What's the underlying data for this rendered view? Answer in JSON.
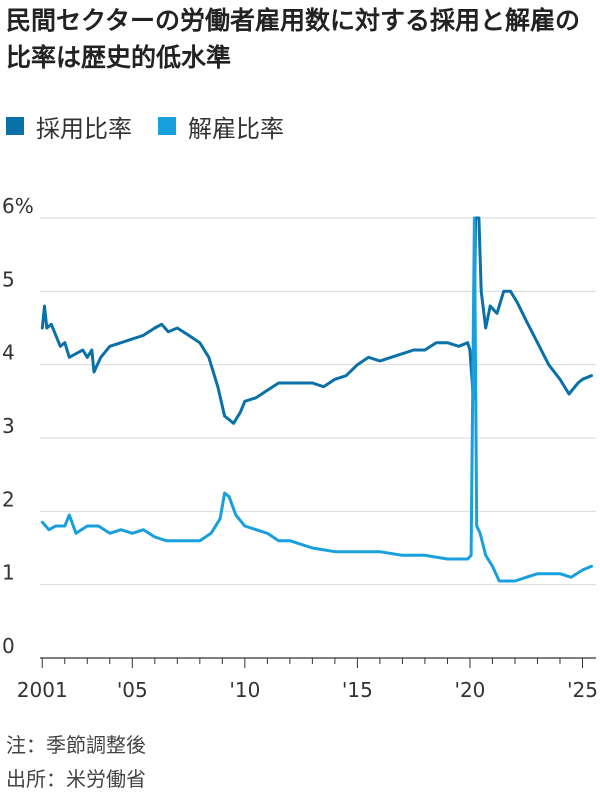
{
  "chart_data": {
    "type": "line",
    "title": "民間セクターの労働者雇用数に対する採用と解雇の比率は歴史的低水準",
    "ylabel": "",
    "xlabel": "",
    "ylim": [
      0,
      6
    ],
    "xlim": [
      2000.9,
      2025.6
    ],
    "grid": true,
    "legend": "top-left",
    "y_ticks": [
      {
        "value": 0,
        "label": "0"
      },
      {
        "value": 1,
        "label": "1"
      },
      {
        "value": 2,
        "label": "2"
      },
      {
        "value": 3,
        "label": "3"
      },
      {
        "value": 4,
        "label": "4"
      },
      {
        "value": 5,
        "label": "5"
      },
      {
        "value": 6,
        "label": "6%"
      }
    ],
    "x_ticks": [
      {
        "value": 2001,
        "label": "2001"
      },
      {
        "value": 2005,
        "label": "'05"
      },
      {
        "value": 2010,
        "label": "'10"
      },
      {
        "value": 2015,
        "label": "'15"
      },
      {
        "value": 2020,
        "label": "'20"
      },
      {
        "value": 2025,
        "label": "'25"
      }
    ],
    "series": [
      {
        "name": "採用比率",
        "color": "#0a70a8",
        "points": [
          [
            2001.0,
            4.5
          ],
          [
            2001.1,
            4.8
          ],
          [
            2001.2,
            4.5
          ],
          [
            2001.4,
            4.55
          ],
          [
            2001.6,
            4.4
          ],
          [
            2001.8,
            4.25
          ],
          [
            2002.0,
            4.3
          ],
          [
            2002.2,
            4.1
          ],
          [
            2002.5,
            4.15
          ],
          [
            2002.8,
            4.2
          ],
          [
            2003.0,
            4.1
          ],
          [
            2003.2,
            4.2
          ],
          [
            2003.3,
            3.9
          ],
          [
            2003.6,
            4.1
          ],
          [
            2004.0,
            4.25
          ],
          [
            2004.5,
            4.3
          ],
          [
            2005.0,
            4.35
          ],
          [
            2005.5,
            4.4
          ],
          [
            2006.0,
            4.5
          ],
          [
            2006.3,
            4.55
          ],
          [
            2006.6,
            4.45
          ],
          [
            2007.0,
            4.5
          ],
          [
            2007.5,
            4.4
          ],
          [
            2008.0,
            4.3
          ],
          [
            2008.4,
            4.1
          ],
          [
            2008.8,
            3.7
          ],
          [
            2009.1,
            3.3
          ],
          [
            2009.5,
            3.2
          ],
          [
            2009.8,
            3.35
          ],
          [
            2010.0,
            3.5
          ],
          [
            2010.5,
            3.55
          ],
          [
            2011.0,
            3.65
          ],
          [
            2011.5,
            3.75
          ],
          [
            2012.0,
            3.75
          ],
          [
            2013.0,
            3.75
          ],
          [
            2013.5,
            3.7
          ],
          [
            2014.0,
            3.8
          ],
          [
            2014.5,
            3.85
          ],
          [
            2015.0,
            4.0
          ],
          [
            2015.5,
            4.1
          ],
          [
            2016.0,
            4.05
          ],
          [
            2016.5,
            4.1
          ],
          [
            2017.0,
            4.15
          ],
          [
            2017.5,
            4.2
          ],
          [
            2018.0,
            4.2
          ],
          [
            2018.5,
            4.3
          ],
          [
            2019.0,
            4.3
          ],
          [
            2019.5,
            4.25
          ],
          [
            2019.9,
            4.3
          ],
          [
            2020.0,
            4.2
          ],
          [
            2020.15,
            3.55
          ],
          [
            2020.25,
            6.0
          ],
          [
            2020.4,
            6.0
          ],
          [
            2020.5,
            5.0
          ],
          [
            2020.7,
            4.5
          ],
          [
            2020.9,
            4.8
          ],
          [
            2021.2,
            4.7
          ],
          [
            2021.5,
            5.0
          ],
          [
            2021.8,
            5.0
          ],
          [
            2022.1,
            4.85
          ],
          [
            2022.5,
            4.6
          ],
          [
            2023.0,
            4.3
          ],
          [
            2023.5,
            4.0
          ],
          [
            2024.0,
            3.8
          ],
          [
            2024.4,
            3.6
          ],
          [
            2024.8,
            3.75
          ],
          [
            2025.0,
            3.8
          ],
          [
            2025.4,
            3.85
          ]
        ]
      },
      {
        "name": "解雇比率",
        "color": "#189fde",
        "points": [
          [
            2001.0,
            1.85
          ],
          [
            2001.3,
            1.75
          ],
          [
            2001.6,
            1.8
          ],
          [
            2002.0,
            1.8
          ],
          [
            2002.2,
            1.95
          ],
          [
            2002.5,
            1.7
          ],
          [
            2003.0,
            1.8
          ],
          [
            2003.5,
            1.8
          ],
          [
            2004.0,
            1.7
          ],
          [
            2004.5,
            1.75
          ],
          [
            2005.0,
            1.7
          ],
          [
            2005.5,
            1.75
          ],
          [
            2006.0,
            1.65
          ],
          [
            2006.5,
            1.6
          ],
          [
            2007.0,
            1.6
          ],
          [
            2007.5,
            1.6
          ],
          [
            2008.0,
            1.6
          ],
          [
            2008.5,
            1.7
          ],
          [
            2008.9,
            1.9
          ],
          [
            2009.1,
            2.25
          ],
          [
            2009.3,
            2.2
          ],
          [
            2009.6,
            1.95
          ],
          [
            2010.0,
            1.8
          ],
          [
            2010.5,
            1.75
          ],
          [
            2011.0,
            1.7
          ],
          [
            2011.5,
            1.6
          ],
          [
            2012.0,
            1.6
          ],
          [
            2013.0,
            1.5
          ],
          [
            2014.0,
            1.45
          ],
          [
            2015.0,
            1.45
          ],
          [
            2016.0,
            1.45
          ],
          [
            2017.0,
            1.4
          ],
          [
            2018.0,
            1.4
          ],
          [
            2019.0,
            1.35
          ],
          [
            2019.9,
            1.35
          ],
          [
            2020.05,
            1.4
          ],
          [
            2020.2,
            6.0
          ],
          [
            2020.3,
            1.8
          ],
          [
            2020.45,
            1.7
          ],
          [
            2020.7,
            1.4
          ],
          [
            2021.0,
            1.25
          ],
          [
            2021.3,
            1.05
          ],
          [
            2021.7,
            1.05
          ],
          [
            2022.0,
            1.05
          ],
          [
            2022.5,
            1.1
          ],
          [
            2023.0,
            1.15
          ],
          [
            2023.5,
            1.15
          ],
          [
            2024.0,
            1.15
          ],
          [
            2024.5,
            1.1
          ],
          [
            2025.0,
            1.2
          ],
          [
            2025.4,
            1.25
          ]
        ]
      }
    ],
    "notes": [
      "注：季節調整後",
      "出所：米労働省"
    ]
  }
}
